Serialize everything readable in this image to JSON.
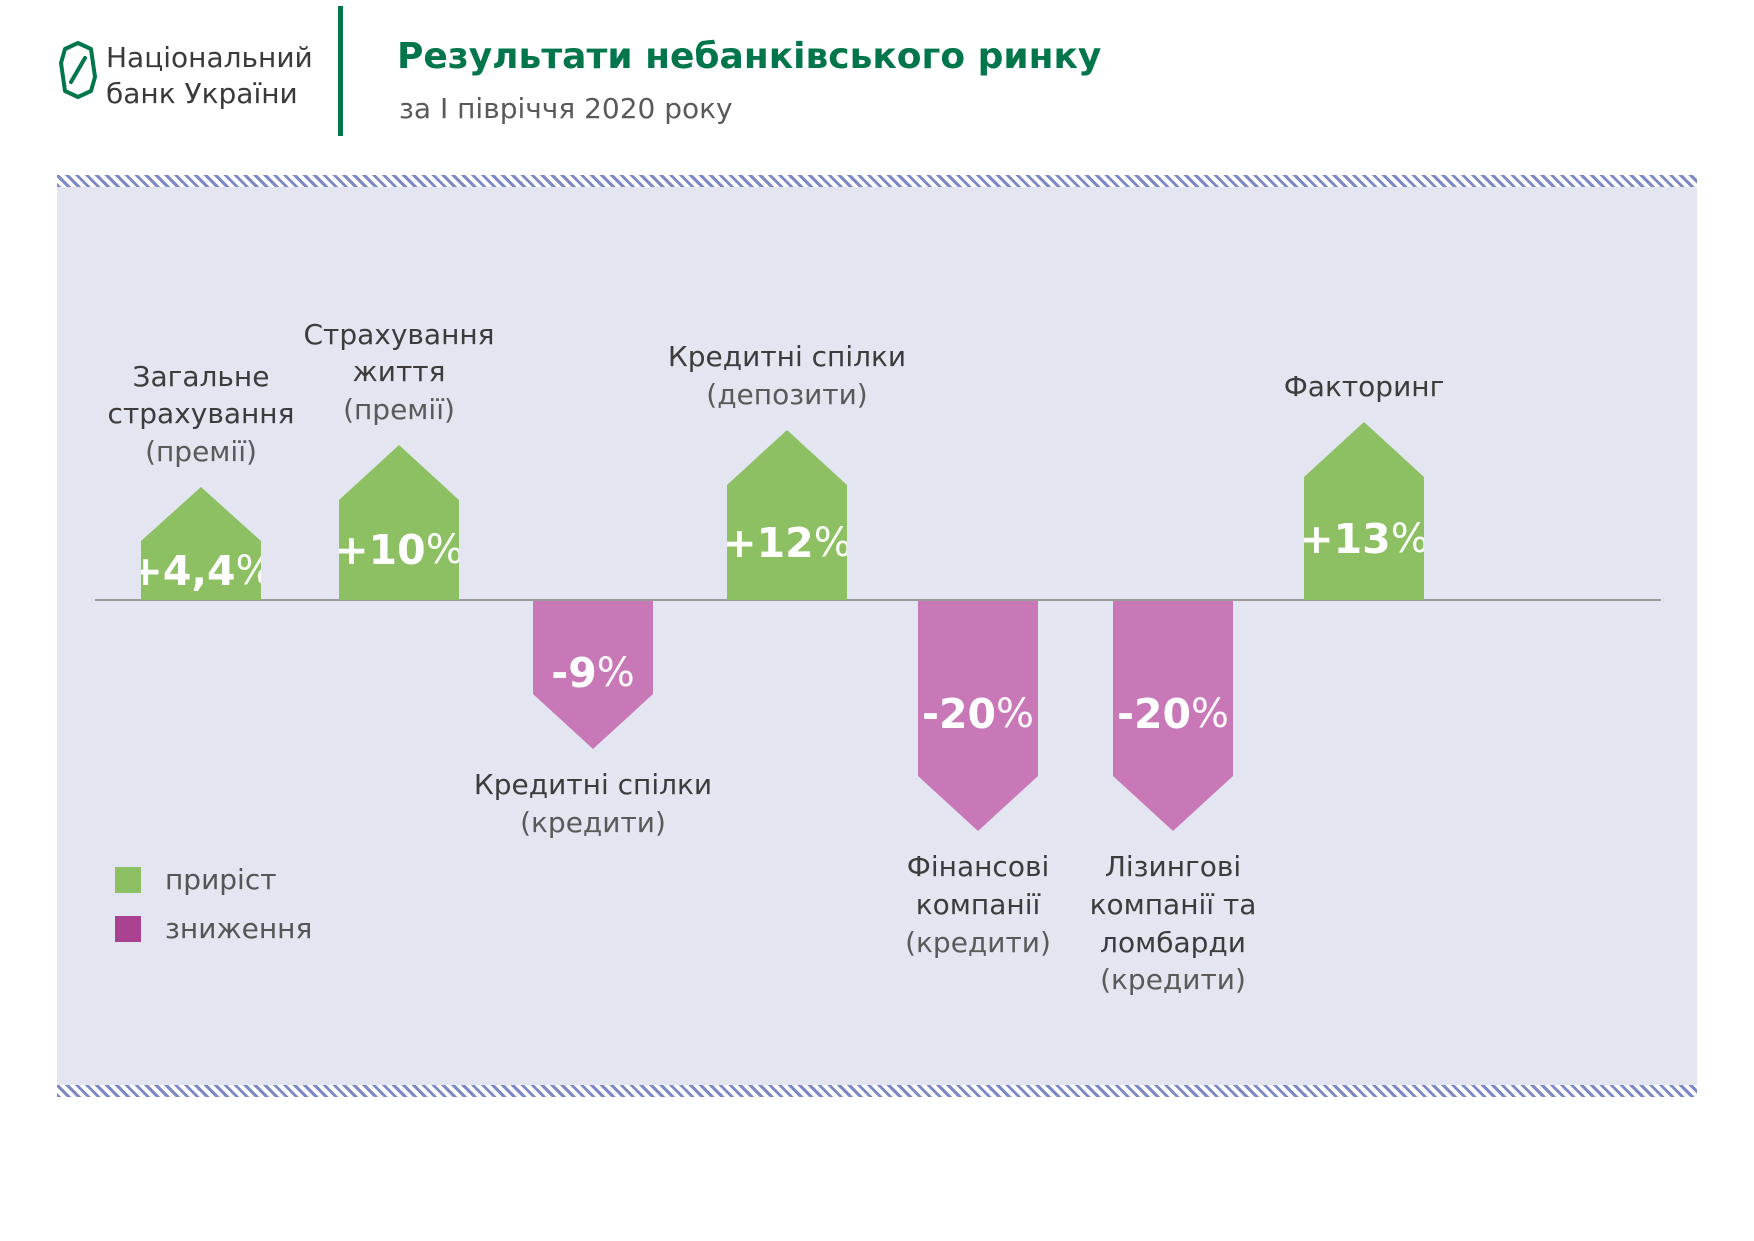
{
  "header": {
    "logo_line1": "Національний",
    "logo_line2": "банк України",
    "title": "Результати небанківського ринку",
    "subtitle": "за І півріччя 2020 року"
  },
  "legend": {
    "growth_label": "приріст",
    "decline_label": "зниження"
  },
  "colors": {
    "growth_green": "#8cc063",
    "decline_pink": "#c878b6",
    "legend_decline_pink": "#a8418f",
    "brand_green": "#00764a",
    "stripe_blue": "#7d88c7",
    "panel_bg": "#e3e5f0",
    "baseline_gray": "#9a9a9a"
  },
  "chart_data": {
    "type": "bar",
    "title": "Результати небанківського ринку за І півріччя 2020 року",
    "unit": "%",
    "legend": [
      "приріст",
      "зниження"
    ],
    "items": [
      {
        "label": "Загальне страхування",
        "sublabel": "(премії)",
        "value": 4.4,
        "value_display": "+4,4",
        "direction": "up"
      },
      {
        "label": "Страхування життя",
        "sublabel": "(премії)",
        "value": 10,
        "value_display": "+10",
        "direction": "up"
      },
      {
        "label": "Кредитні спілки",
        "sublabel": "(кредити)",
        "value": -9,
        "value_display": "-9",
        "direction": "down"
      },
      {
        "label": "Кредитні спілки",
        "sublabel": "(депозити)",
        "value": 12,
        "value_display": "+12",
        "direction": "up"
      },
      {
        "label": "Фінансові компанії",
        "sublabel": "(кредити)",
        "value": -20,
        "value_display": "-20",
        "direction": "down"
      },
      {
        "label": "Лізингові компанії та ломбарди",
        "sublabel": "(кредити)",
        "value": -20,
        "value_display": "-20",
        "direction": "down"
      },
      {
        "label": "Факторинг",
        "sublabel": "",
        "value": 13,
        "value_display": "+13",
        "direction": "up"
      }
    ]
  }
}
